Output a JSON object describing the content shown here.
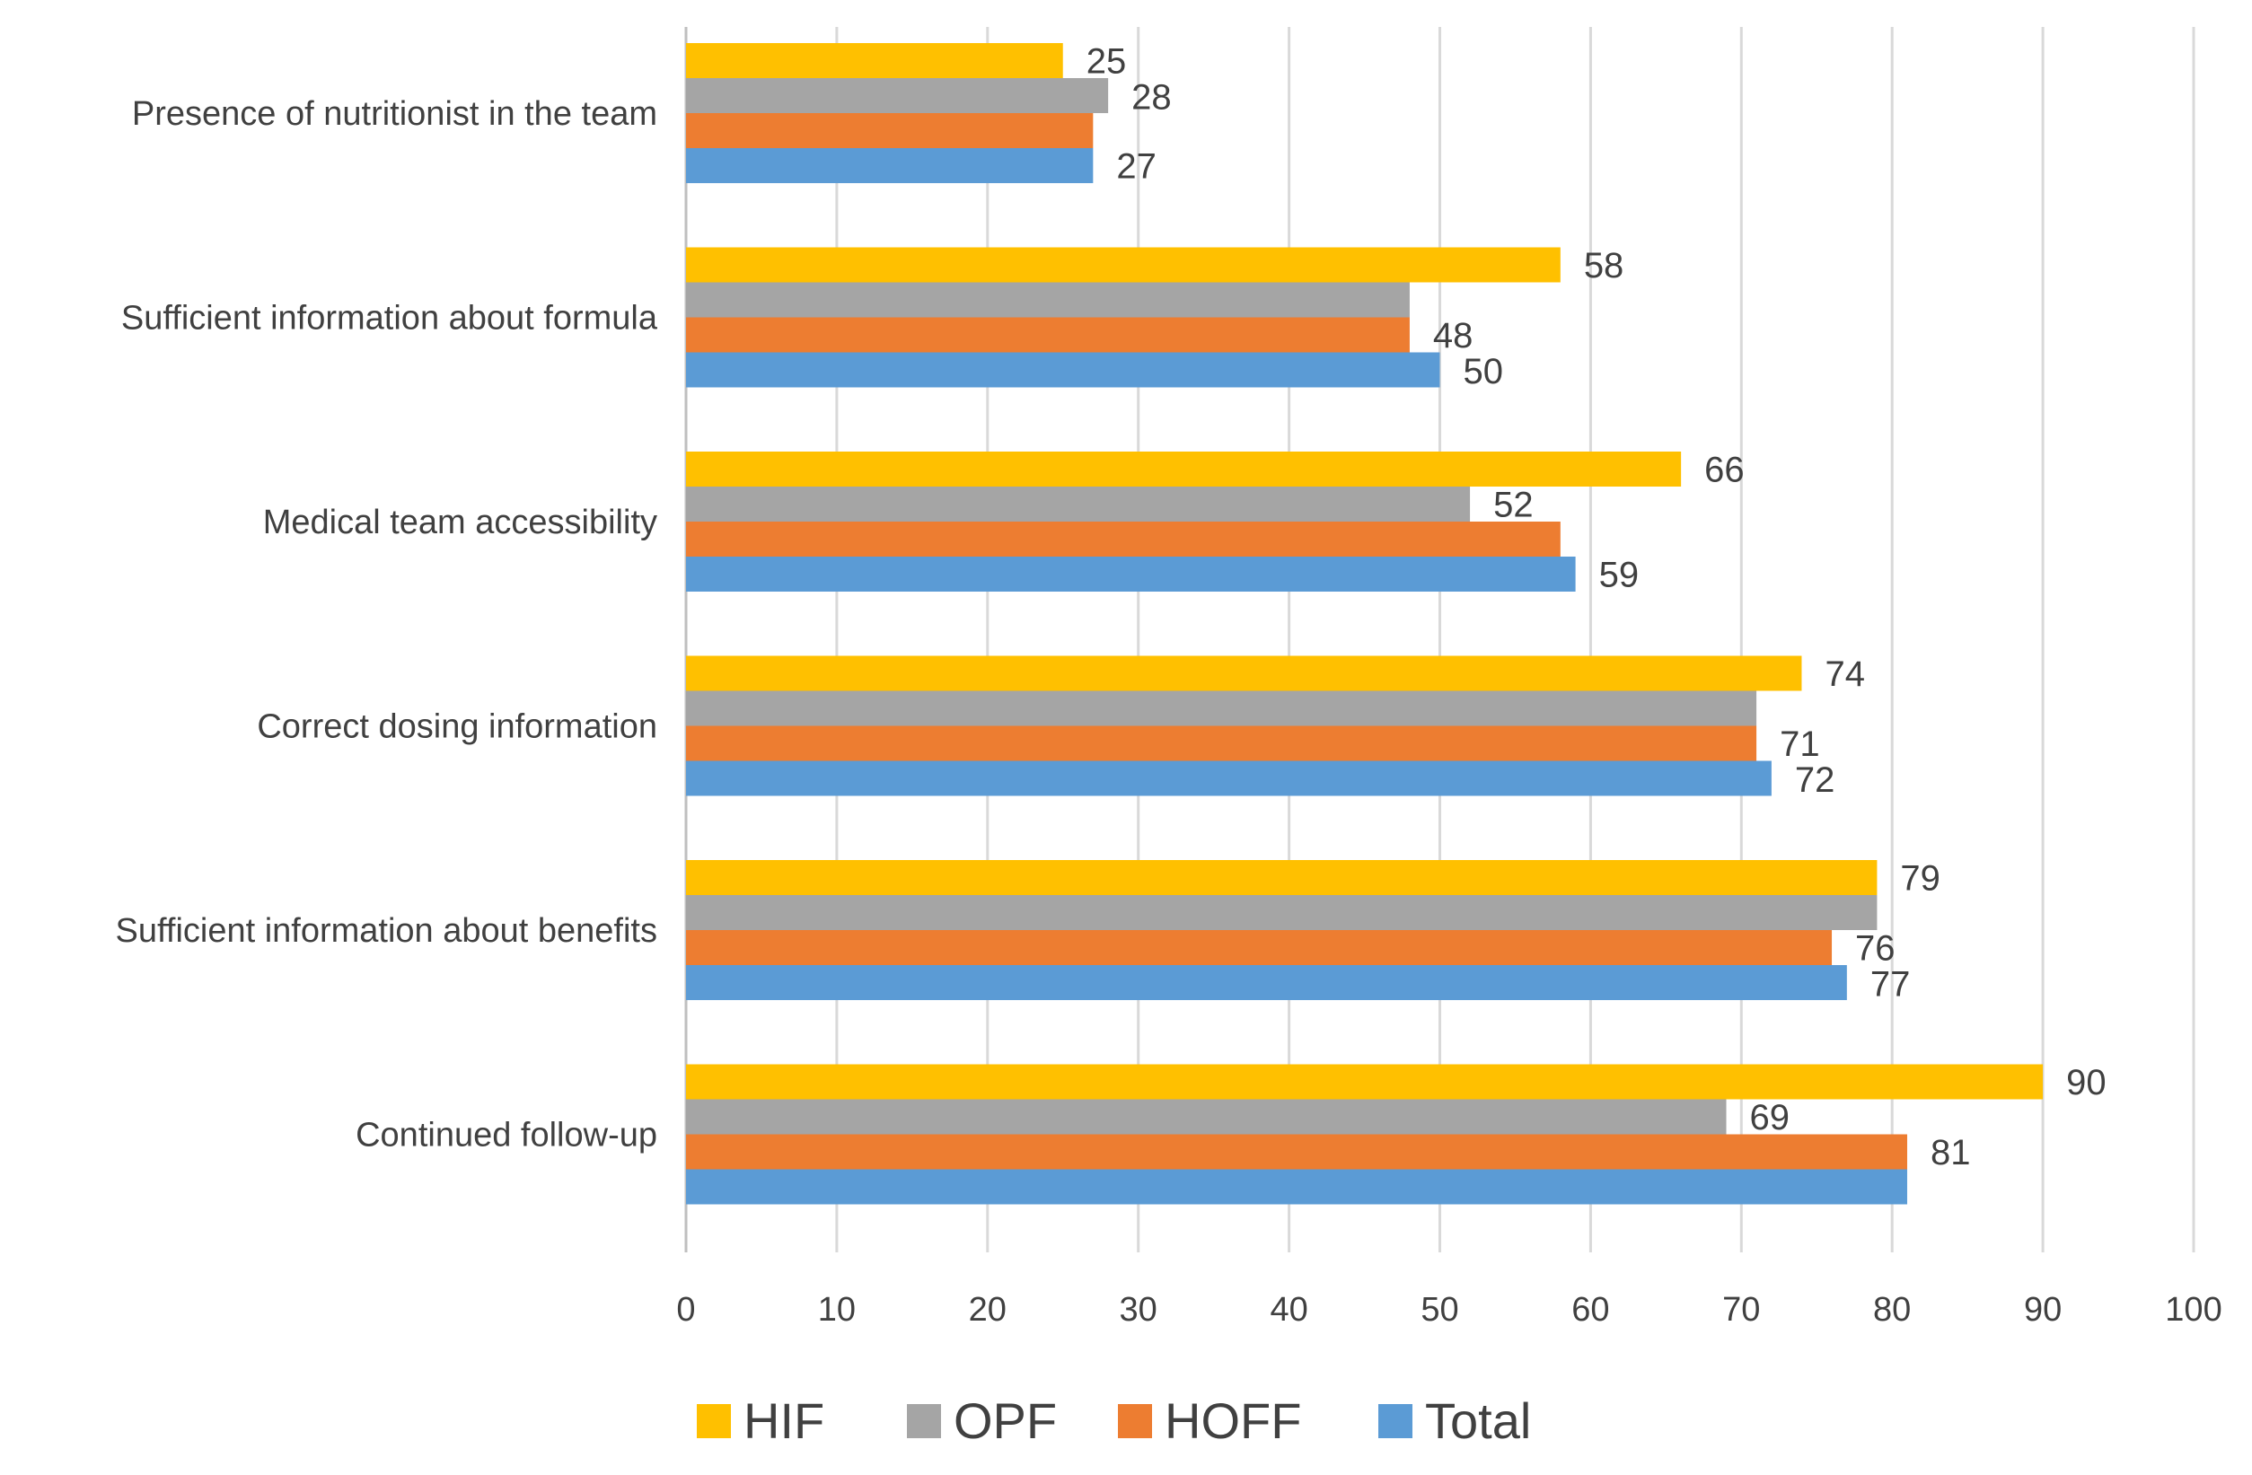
{
  "chart_data": {
    "type": "bar",
    "orientation": "horizontal",
    "categories": [
      "Presence of nutritionist in the team",
      "Sufficient information about formula",
      "Medical team accessibility",
      "Correct dosing information",
      "Sufficient information about benefits",
      "Continued follow-up"
    ],
    "series": [
      {
        "name": "HIF",
        "color": "#FFC000",
        "values": [
          25,
          58,
          66,
          74,
          79,
          90
        ]
      },
      {
        "name": "OPF",
        "color": "#A5A5A5",
        "values": [
          28,
          48,
          52,
          71,
          79,
          69
        ]
      },
      {
        "name": "HOFF",
        "color": "#ED7D31",
        "values": [
          27,
          48,
          58,
          71,
          76,
          81
        ]
      },
      {
        "name": "Total",
        "color": "#5B9BD5",
        "values": [
          27,
          50,
          59,
          72,
          77,
          81
        ]
      }
    ],
    "data_labels": [
      {
        "category": 0,
        "series": "HIF",
        "text": "25"
      },
      {
        "category": 0,
        "series": "OPF",
        "text": "28"
      },
      {
        "category": 0,
        "series": "Total",
        "text": "27"
      },
      {
        "category": 1,
        "series": "HIF",
        "text": "58"
      },
      {
        "category": 1,
        "series": "HOFF",
        "text": "48"
      },
      {
        "category": 1,
        "series": "Total",
        "text": "50"
      },
      {
        "category": 2,
        "series": "HIF",
        "text": "66"
      },
      {
        "category": 2,
        "series": "OPF",
        "text": "52"
      },
      {
        "category": 2,
        "series": "Total",
        "text": "59"
      },
      {
        "category": 3,
        "series": "HIF",
        "text": "74"
      },
      {
        "category": 3,
        "series": "HOFF",
        "text": "71"
      },
      {
        "category": 3,
        "series": "Total",
        "text": "72"
      },
      {
        "category": 4,
        "series": "HIF",
        "text": "79"
      },
      {
        "category": 4,
        "series": "HOFF",
        "text": "76"
      },
      {
        "category": 4,
        "series": "Total",
        "text": "77"
      },
      {
        "category": 5,
        "series": "HIF",
        "text": "90"
      },
      {
        "category": 5,
        "series": "OPF",
        "text": "69"
      },
      {
        "category": 5,
        "series": "HOFF",
        "text": "81"
      }
    ],
    "xlim": [
      0,
      100
    ],
    "x_ticks": [
      0,
      10,
      20,
      30,
      40,
      50,
      60,
      70,
      80,
      90,
      100
    ],
    "grid": true,
    "legend_position": "bottom"
  }
}
